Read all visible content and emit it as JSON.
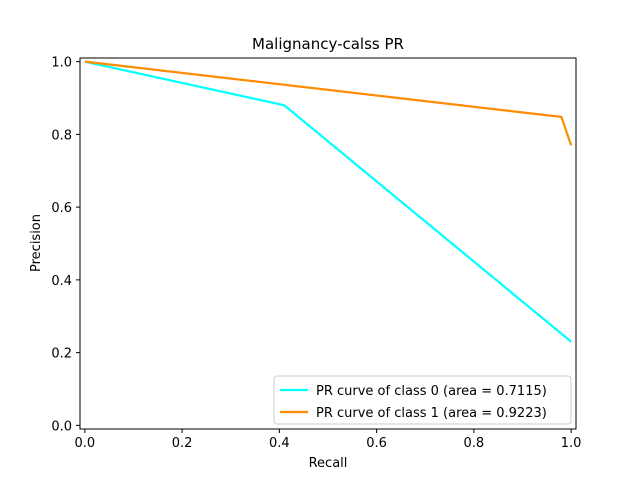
{
  "chart_data": {
    "type": "line",
    "title": "Malignancy-calss PR",
    "xlabel": "Recall",
    "ylabel": "Precision",
    "xlim": [
      -0.01,
      1.01
    ],
    "ylim": [
      -0.01,
      1.01
    ],
    "xticks": [
      0.0,
      0.2,
      0.4,
      0.6,
      0.8,
      1.0
    ],
    "xtick_labels": [
      "0.0",
      "0.2",
      "0.4",
      "0.6",
      "0.8",
      "1.0"
    ],
    "yticks": [
      0.0,
      0.2,
      0.4,
      0.6,
      0.8,
      1.0
    ],
    "ytick_labels": [
      "0.0",
      "0.2",
      "0.4",
      "0.6",
      "0.8",
      "1.0"
    ],
    "grid": false,
    "legend_position": "bottom-right",
    "series": [
      {
        "name": "PR curve of class 0 (area = 0.7115)",
        "color": "#00ffff",
        "x": [
          0.0,
          0.41,
          1.0
        ],
        "y": [
          1.0,
          0.88,
          0.23
        ]
      },
      {
        "name": "PR curve of class 1 (area = 0.9223)",
        "color": "#ff8c00",
        "x": [
          0.0,
          0.98,
          1.0
        ],
        "y": [
          1.0,
          0.848,
          0.77
        ]
      }
    ]
  }
}
